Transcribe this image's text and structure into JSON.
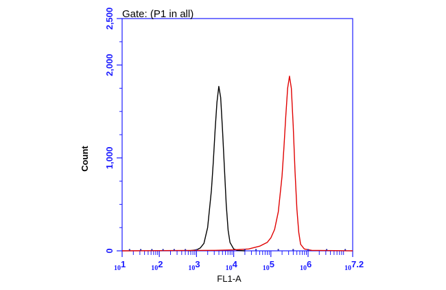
{
  "chart_data": {
    "type": "line",
    "title": "Gate: (P1 in all)",
    "xlabel": "FL1-A",
    "ylabel": "Count",
    "x_scale": "log",
    "xlim": [
      1,
      7.2
    ],
    "ylim": [
      0,
      2500
    ],
    "y_ticks": [
      {
        "value": 0,
        "label": "0"
      },
      {
        "value": 1000,
        "label": "1,000"
      },
      {
        "value": 2000,
        "label": "2,000"
      },
      {
        "value": 2500,
        "label": "2,500"
      }
    ],
    "x_ticks": [
      {
        "value": 1,
        "base": "10",
        "exp": "1"
      },
      {
        "value": 2,
        "base": "10",
        "exp": "2"
      },
      {
        "value": 3,
        "base": "10",
        "exp": "3"
      },
      {
        "value": 4,
        "base": "10",
        "exp": "4"
      },
      {
        "value": 5,
        "base": "10",
        "exp": "5"
      },
      {
        "value": 6,
        "base": "10",
        "exp": "6"
      },
      {
        "value": 7.2,
        "base": "10",
        "exp": "7.2"
      }
    ],
    "series": [
      {
        "color": "#000000",
        "points": [
          [
            2.8,
            0
          ],
          [
            3.0,
            10
          ],
          [
            3.1,
            30
          ],
          [
            3.2,
            80
          ],
          [
            3.3,
            250
          ],
          [
            3.4,
            650
          ],
          [
            3.45,
            950
          ],
          [
            3.5,
            1300
          ],
          [
            3.55,
            1600
          ],
          [
            3.6,
            1770
          ],
          [
            3.65,
            1650
          ],
          [
            3.7,
            1300
          ],
          [
            3.75,
            900
          ],
          [
            3.8,
            500
          ],
          [
            3.85,
            220
          ],
          [
            3.9,
            90
          ],
          [
            4.0,
            20
          ],
          [
            4.1,
            5
          ],
          [
            4.3,
            0
          ]
        ]
      },
      {
        "color": "#e00000",
        "points": [
          [
            1.0,
            0
          ],
          [
            3.5,
            5
          ],
          [
            4.0,
            10
          ],
          [
            4.4,
            20
          ],
          [
            4.7,
            50
          ],
          [
            4.9,
            90
          ],
          [
            5.0,
            140
          ],
          [
            5.1,
            230
          ],
          [
            5.2,
            420
          ],
          [
            5.3,
            800
          ],
          [
            5.35,
            1100
          ],
          [
            5.4,
            1450
          ],
          [
            5.45,
            1750
          ],
          [
            5.5,
            1880
          ],
          [
            5.55,
            1750
          ],
          [
            5.6,
            1350
          ],
          [
            5.65,
            850
          ],
          [
            5.7,
            450
          ],
          [
            5.75,
            200
          ],
          [
            5.8,
            70
          ],
          [
            5.9,
            20
          ],
          [
            6.1,
            5
          ],
          [
            7.2,
            0
          ]
        ]
      }
    ],
    "grid": false,
    "axis_color": "#1a1aff"
  }
}
